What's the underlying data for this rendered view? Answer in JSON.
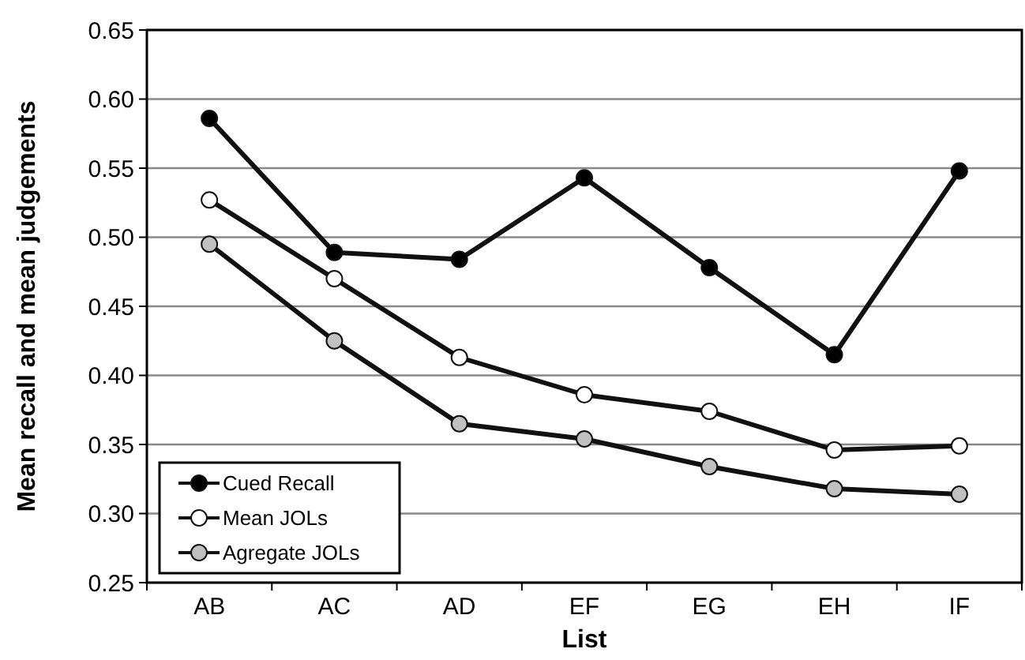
{
  "chart_data": {
    "type": "line",
    "xlabel": "List",
    "ylabel": "Mean recall and mean judgements",
    "categories": [
      "AB",
      "AC",
      "AD",
      "EF",
      "EG",
      "EH",
      "IF"
    ],
    "series": [
      {
        "name": "Cued Recall",
        "color": "#000000",
        "values": [
          0.586,
          0.489,
          0.484,
          0.543,
          0.478,
          0.415,
          0.548
        ]
      },
      {
        "name": "Mean JOLs",
        "color": "#ffffff",
        "values": [
          0.527,
          0.47,
          0.413,
          0.386,
          0.374,
          0.346,
          0.349
        ]
      },
      {
        "name": "Agregate JOLs",
        "color": "#c0c0c0",
        "values": [
          0.495,
          0.425,
          0.365,
          0.354,
          0.334,
          0.318,
          0.314
        ]
      }
    ],
    "ylim": [
      0.25,
      0.65
    ],
    "yticks": [
      {
        "value": 0.25,
        "label": "0.25"
      },
      {
        "value": 0.3,
        "label": "0.30"
      },
      {
        "value": 0.35,
        "label": "0.35"
      },
      {
        "value": 0.4,
        "label": "0.40"
      },
      {
        "value": 0.45,
        "label": "0.45"
      },
      {
        "value": 0.5,
        "label": "0.50"
      },
      {
        "value": 0.55,
        "label": "0.55"
      },
      {
        "value": 0.6,
        "label": "0.60"
      },
      {
        "value": 0.65,
        "label": "0.65"
      }
    ],
    "grid": "y",
    "legend": "bottom left",
    "marker": "circle",
    "line_style": "solid"
  }
}
